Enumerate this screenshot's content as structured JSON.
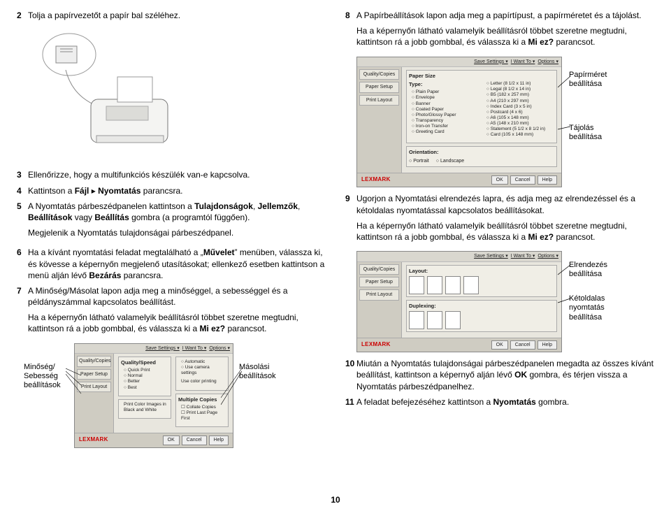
{
  "page_number": "10",
  "left": {
    "steps": {
      "s2": "Tolja a papírvezetőt a papír bal széléhez.",
      "s3": "Ellenőrizze, hogy a multifunkciós készülék van-e kapcsolva.",
      "s4_pre": "Kattintson a ",
      "s4_b1": "Fájl",
      "s4_arrow": " ▸ ",
      "s4_b2": "Nyomtatás",
      "s4_post": " parancsra.",
      "s5_pre": "A Nyomtatás párbeszédpanelen kattintson a ",
      "s5_b1": "Tulajdonságok",
      "s5_c1": ", ",
      "s5_b2": "Jellemzők",
      "s5_c2": ", ",
      "s5_b3": "Beállítások",
      "s5_c3": " vagy ",
      "s5_b4": "Beállítás",
      "s5_post": " gombra (a programtól függően).",
      "s5_extra": "Megjelenik a Nyomtatás tulajdonságai párbeszédpanel.",
      "s6_pre": "Ha a kívánt nyomtatási feladat megtalálható a „",
      "s6_b1": "Művelet",
      "s6_mid": "” menüben, válassza ki, és kövesse a képernyőn megjelenő utasításokat; ellenkező esetben kattintson a menü alján lévő ",
      "s6_b2": "Bezárás",
      "s6_post": " parancsra.",
      "s7": "A Minőség/Másolat lapon adja meg a minőséggel, a sebességgel és a példányszámmal kapcsolatos beállítást.",
      "s7b_pre": "Ha a képernyőn látható valamelyik beállításról többet szeretne megtudni, kattintson rá a jobb gombbal, és válassza ki a ",
      "s7b_b": "Mi ez?",
      "s7b_post": " parancsot."
    },
    "labels": {
      "quality": "Minőség/\nSebesség\nbeállítások",
      "copy": "Másolási\nbeállítások"
    }
  },
  "right": {
    "steps": {
      "s8": "A Papírbeállítások lapon adja meg a papírtípust, a papírméretet és a tájolást.",
      "s8b_pre": "Ha a képernyőn látható valamelyik beállításról többet szeretne megtudni, kattintson rá a jobb gombbal, és válassza ki a ",
      "s8b_b": "Mi ez?",
      "s8b_post": " parancsot.",
      "s9": "Ugorjon a Nyomtatási elrendezés lapra, és adja meg az elrendezéssel és a kétoldalas nyomtatással kapcsolatos beállításokat.",
      "s9b_pre": "Ha a képernyőn látható valamelyik beállításról többet szeretne megtudni, kattintson rá a jobb gombbal, és válassza ki a ",
      "s9b_b": "Mi ez?",
      "s9b_post": " parancsot.",
      "s10_pre": "Miután a Nyomtatás tulajdonságai párbeszédpanelen megadta az összes kívánt beállítást, kattintson a képernyő alján lévő ",
      "s10_b": "OK",
      "s10_post": " gombra, és térjen vissza a Nyomtatás párbeszédpanelhez.",
      "s11_pre": "A feladat befejezéséhez kattintson a ",
      "s11_b": "Nyomtatás",
      "s11_post": " gombra."
    },
    "labels": {
      "size": "Papírméret\nbeállítása",
      "orient": "Tájolás\nbeállítása",
      "layout": "Elrendezés\nbeállítása",
      "duplex": "Kétoldalas\nnyomtatás\nbeállítása"
    }
  },
  "dialog": {
    "menu_save": "Save Settings ▾",
    "menu_want": "I Want To ▾",
    "menu_opt": "Options ▾",
    "tabs": {
      "quality": "Quality/Copies",
      "setup": "Paper Setup",
      "layout": "Print Layout"
    },
    "quality_opts": [
      "Quick Print",
      "Normal",
      "Better",
      "Best"
    ],
    "tab_items": [
      "Quality/Copies",
      "Paper Setup",
      "Print Layout"
    ],
    "paper_title": "Paper Size",
    "paper_types": [
      "Plain Paper",
      "Envelope",
      "Banner",
      "Coated Paper",
      "Photo/Glossy Paper",
      "Transparency",
      "Iron-on Transfer",
      "Greeting Card"
    ],
    "paper_sizes": [
      "Letter (8 1/2 x 11 in)",
      "Legal (8 1/2 x 14 in)",
      "B5 (182 x 257 mm)",
      "A4 (210 x 297 mm)",
      "Index Card (3 x 5 in)",
      "Postcard (4 x 6)",
      "A6 (105 x 148 mm)",
      "A5 (148 x 210 mm)",
      "Statement (5 1/2 x 8 1/2 in)",
      "Card (105 x 148 mm)"
    ],
    "section_type": "Type:",
    "orient_title": "Orientation:",
    "orient_vals": [
      "Portrait",
      "Landscape"
    ],
    "layout_title": "Layout:",
    "duplex_title": "Duplexing:",
    "logo": "LEXMARK",
    "btn_ok": "OK",
    "btn_cancel": "Cancel",
    "btn_help": "Help",
    "q_group1": "Quality/Speed",
    "q_opts2": [
      "Automatic",
      "Use camera settings"
    ],
    "q_group2": "Use color printing",
    "q_group3": "Print Color Images in Black and White",
    "copies_title": "Multiple Copies",
    "copies_opts": [
      "Collate Copies",
      "Print Last Page First"
    ]
  }
}
